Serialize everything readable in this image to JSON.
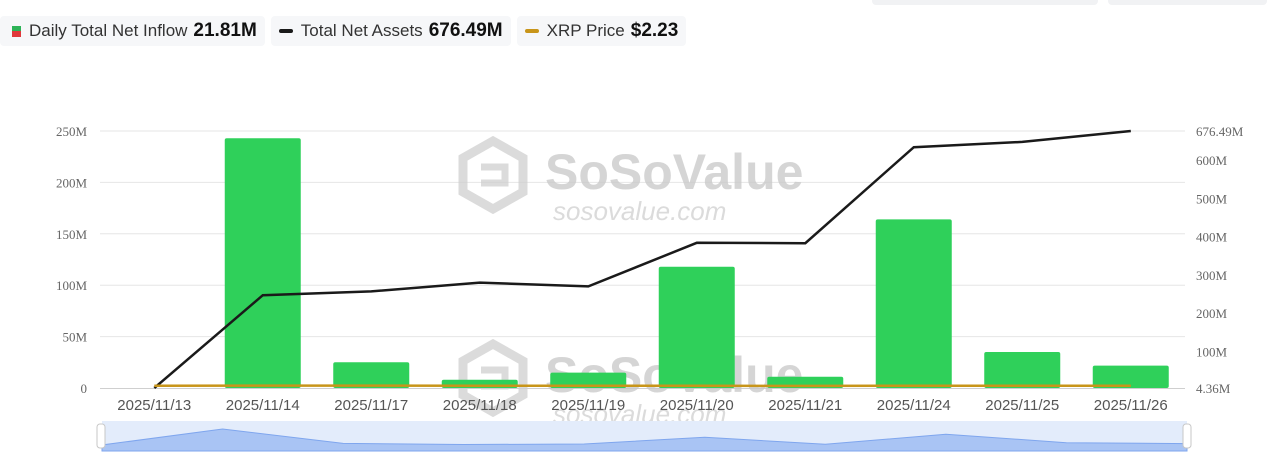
{
  "legend": [
    {
      "label": "Daily Total Net Inflow",
      "value": "21.81M",
      "color": "#2db357",
      "negative_color": "#e0383b"
    },
    {
      "label": "Total Net Assets",
      "value": "676.49M",
      "color": "#1a1a1a"
    },
    {
      "label": "XRP Price",
      "value": "$2.23",
      "color": "#c8951a"
    }
  ],
  "watermark": {
    "brand": "SoSoValue",
    "site": "sosovalue.com"
  },
  "chart_data": {
    "type": "bar",
    "categories": [
      "2025/11/13",
      "2025/11/14",
      "2025/11/17",
      "2025/11/18",
      "2025/11/19",
      "2025/11/20",
      "2025/11/21",
      "2025/11/24",
      "2025/11/25",
      "2025/11/26"
    ],
    "series": [
      {
        "name": "Daily Total Net Inflow",
        "type": "bar",
        "axis": "left",
        "color": "#2fd05a",
        "values": [
          0,
          243,
          25,
          8,
          15,
          118,
          11,
          164,
          35,
          21.81
        ]
      },
      {
        "name": "Total Net Assets",
        "type": "line",
        "axis": "right",
        "color": "#1a1a1a",
        "values": [
          4.36,
          247,
          257,
          280,
          270,
          384,
          383,
          634,
          648,
          676.49
        ]
      },
      {
        "name": "XRP Price",
        "type": "line",
        "axis": "left",
        "color": "#c8951a",
        "values": [
          2.2,
          2.3,
          2.3,
          2.2,
          2.2,
          2.1,
          2.0,
          2.2,
          2.2,
          2.23
        ]
      }
    ],
    "left_axis": {
      "ticks": [
        "0",
        "50M",
        "100M",
        "150M",
        "200M",
        "250M"
      ],
      "tick_values": [
        0,
        50,
        100,
        150,
        200,
        250
      ],
      "range": [
        0,
        250
      ]
    },
    "right_axis": {
      "ticks": [
        "4.36M",
        "100M",
        "200M",
        "300M",
        "400M",
        "500M",
        "600M",
        "676.49M"
      ],
      "tick_values": [
        4.36,
        100,
        200,
        300,
        400,
        500,
        600,
        676.49
      ],
      "range": [
        4.36,
        676.49
      ]
    },
    "grid": true,
    "navigator": {
      "values": [
        0,
        243,
        25,
        8,
        15,
        118,
        11,
        164,
        35,
        21.81
      ]
    }
  }
}
